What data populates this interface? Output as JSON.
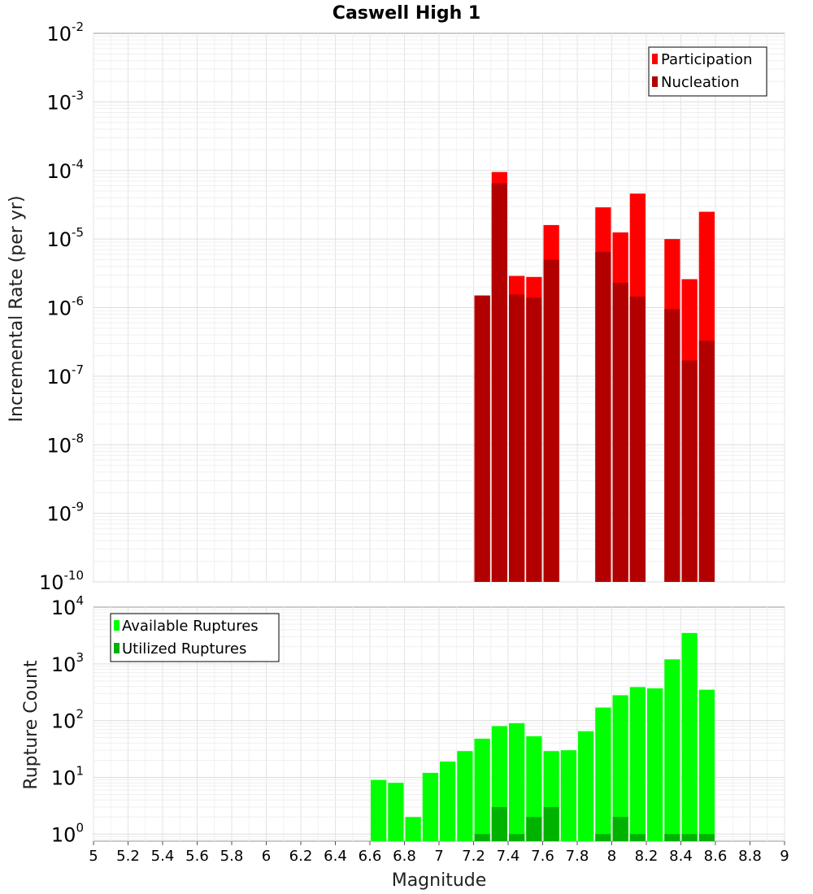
{
  "chart_data": [
    {
      "type": "bar",
      "title": "Caswell High 1",
      "xlabel": "",
      "ylabel": "Incremental Rate (per yr)",
      "yscale": "log",
      "ylim": [
        1e-10,
        0.01
      ],
      "xlim": [
        5,
        9
      ],
      "grid": true,
      "legend_position": "top-right",
      "bar_width": 0.1,
      "x": [
        7.25,
        7.35,
        7.45,
        7.55,
        7.65,
        7.95,
        8.05,
        8.15,
        8.35,
        8.45,
        8.55
      ],
      "series": [
        {
          "name": "Participation",
          "color": "#ff0000",
          "values": [
            1.5e-06,
            9.5e-05,
            2.9e-06,
            2.8e-06,
            1.6e-05,
            2.9e-05,
            1.25e-05,
            4.6e-05,
            1e-05,
            2.6e-06,
            2.5e-05
          ]
        },
        {
          "name": "Nucleation",
          "color": "#b20000",
          "values": [
            1.5e-06,
            6.5e-05,
            1.55e-06,
            1.4e-06,
            5e-06,
            6.5e-06,
            2.3e-06,
            1.45e-06,
            9.5e-07,
            1.7e-07,
            3.3e-07
          ]
        }
      ]
    },
    {
      "type": "bar",
      "title": "",
      "xlabel": "Magnitude",
      "ylabel": "Rupture Count",
      "yscale": "log",
      "ylim": [
        0.75,
        10000
      ],
      "xlim": [
        5,
        9
      ],
      "grid": true,
      "legend_position": "top-left",
      "bar_width": 0.1,
      "x": [
        6.65,
        6.75,
        6.85,
        6.95,
        7.05,
        7.15,
        7.25,
        7.35,
        7.45,
        7.55,
        7.65,
        7.75,
        7.85,
        7.95,
        8.05,
        8.15,
        8.25,
        8.35,
        8.45,
        8.55
      ],
      "series": [
        {
          "name": "Available Ruptures",
          "color": "#00ff00",
          "values": [
            9,
            8,
            2,
            12,
            19,
            29,
            48,
            80,
            90,
            53,
            29,
            30,
            65,
            170,
            280,
            390,
            370,
            1200,
            3500,
            350
          ]
        },
        {
          "name": "Utilized Ruptures",
          "color": "#00b200",
          "values": [
            0,
            0,
            0,
            0,
            0,
            0,
            1,
            3,
            1,
            2,
            3,
            0,
            0,
            1,
            2,
            1,
            0,
            1,
            1,
            1
          ]
        }
      ]
    }
  ],
  "x_ticks": [
    "5",
    "5.2",
    "5.4",
    "5.6",
    "5.8",
    "6",
    "6.2",
    "6.4",
    "6.6",
    "6.8",
    "7",
    "7.2",
    "7.4",
    "7.6",
    "7.8",
    "8",
    "8.2",
    "8.4",
    "8.6",
    "8.8",
    "9"
  ],
  "top_y_ticks": [
    {
      "base": "10",
      "exp": "-2"
    },
    {
      "base": "10",
      "exp": "-3"
    },
    {
      "base": "10",
      "exp": "-4"
    },
    {
      "base": "10",
      "exp": "-5"
    },
    {
      "base": "10",
      "exp": "-6"
    },
    {
      "base": "10",
      "exp": "-7"
    },
    {
      "base": "10",
      "exp": "-8"
    },
    {
      "base": "10",
      "exp": "-9"
    },
    {
      "base": "10",
      "exp": "-10"
    }
  ],
  "bottom_y_ticks": [
    {
      "base": "10",
      "exp": "4"
    },
    {
      "base": "10",
      "exp": "3"
    },
    {
      "base": "10",
      "exp": "2"
    },
    {
      "base": "10",
      "exp": "1"
    },
    {
      "base": "10",
      "exp": "0"
    }
  ]
}
